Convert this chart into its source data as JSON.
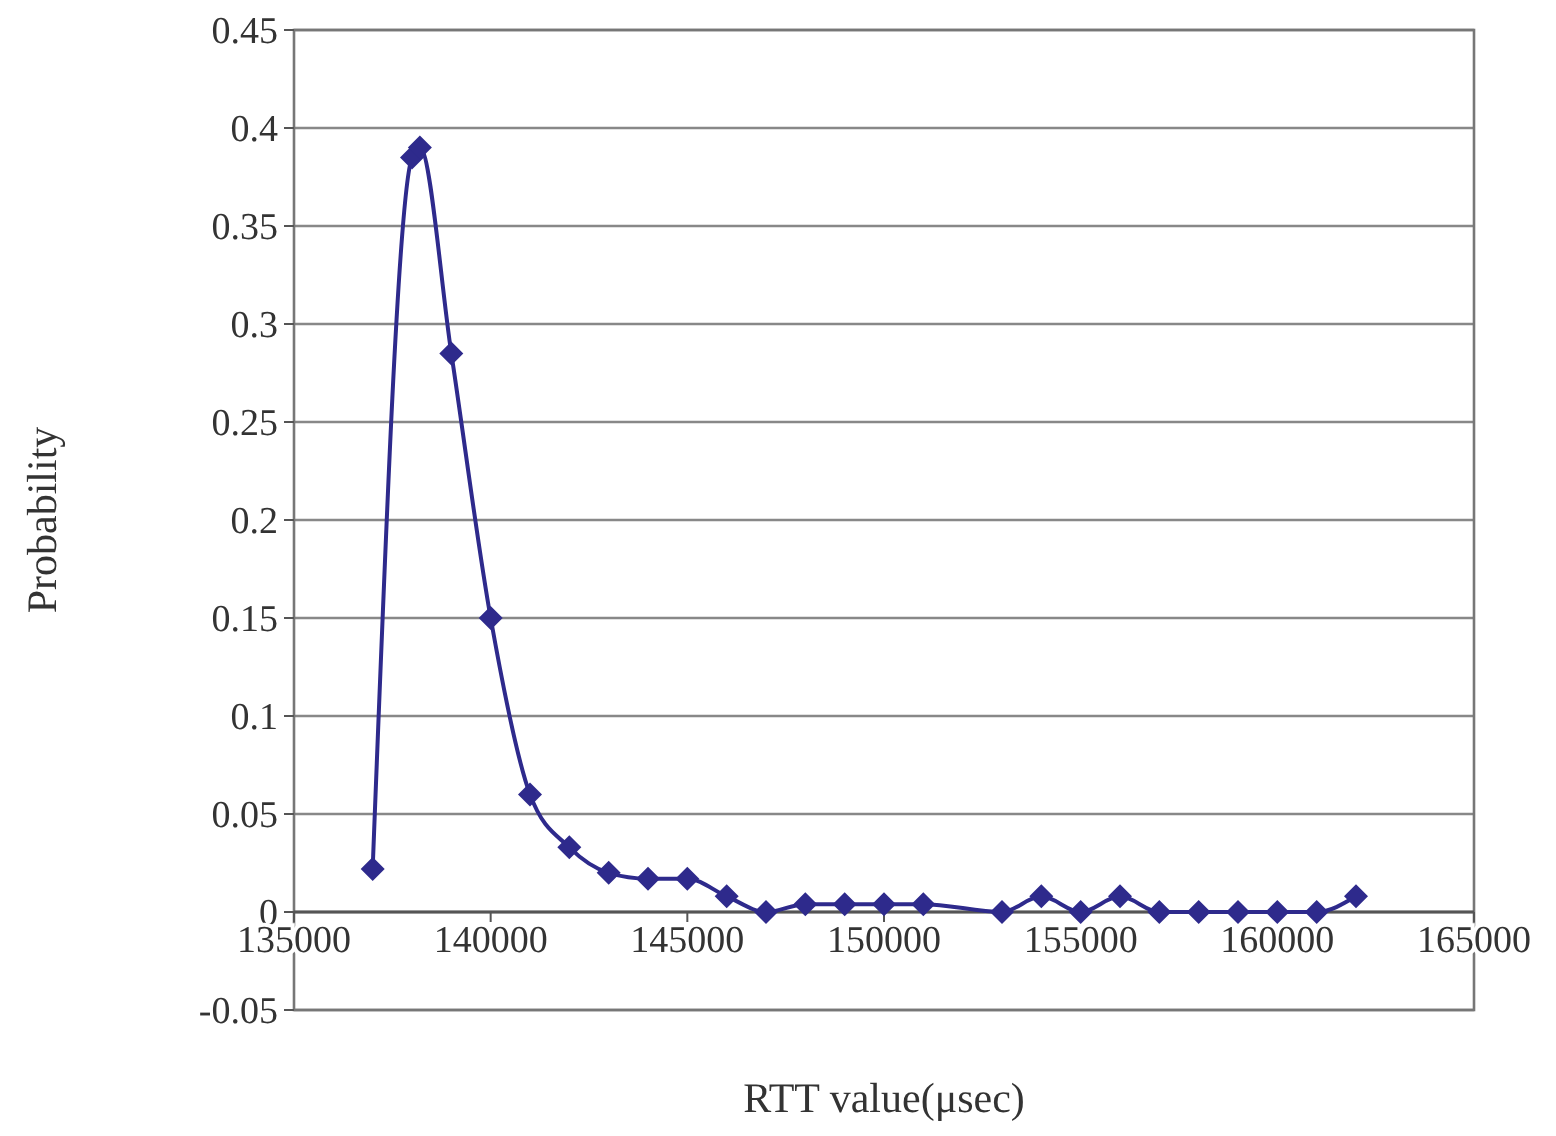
{
  "chart_data": {
    "type": "line",
    "xlabel": "RTT value(μsec)",
    "ylabel": "Probability",
    "x": [
      137000,
      138000,
      138200,
      139000,
      140000,
      141000,
      142000,
      143000,
      144000,
      145000,
      146000,
      147000,
      148000,
      149000,
      150000,
      151000,
      153000,
      154000,
      155000,
      156000,
      157000,
      158000,
      159000,
      160000,
      161000,
      162000
    ],
    "series": [
      {
        "color": "#2e2a8c",
        "values": [
          0.022,
          0.385,
          0.39,
          0.285,
          0.15,
          0.06,
          0.033,
          0.02,
          0.017,
          0.017,
          0.008,
          0,
          0.004,
          0.004,
          0.004,
          0.004,
          0,
          0.008,
          0,
          0.008,
          0,
          0,
          0,
          0,
          0,
          0.008
        ]
      }
    ],
    "xlim": [
      135000,
      165000
    ],
    "xticks": [
      135000,
      140000,
      145000,
      150000,
      155000,
      160000,
      165000
    ],
    "ylim": [
      -0.05,
      0.45
    ],
    "yticks": [
      -0.05,
      0,
      0.05,
      0.1,
      0.15,
      0.2,
      0.25,
      0.3,
      0.35,
      0.4,
      0.45
    ],
    "grid": "y",
    "marker": "diamond"
  }
}
